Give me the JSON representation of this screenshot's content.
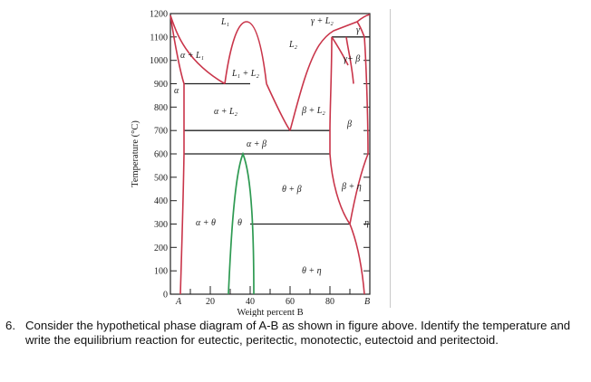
{
  "diagram": {
    "y_axis_title": "Temperature (°C)",
    "x_axis_title": "Weight percent B",
    "y_ticks": [
      "1200",
      "1100",
      "1000",
      "900",
      "800",
      "700",
      "600",
      "500",
      "400",
      "300",
      "200",
      "100",
      "0"
    ],
    "x_ticks": [
      "A",
      "20",
      "40",
      "60",
      "80",
      "B"
    ],
    "phase_labels": {
      "L1": "L₁",
      "L2_top": "L₂",
      "gamma_L2": "γ + L₂",
      "gamma_small": "γ",
      "alpha_L1": "α + L₁",
      "L1_L2": "L₁ + L₂",
      "gamma_beta": "γ+ β",
      "alpha": "α",
      "alpha_L2": "α + L₂",
      "beta_L2": "β + L₂",
      "beta": "β",
      "alpha_beta": "α + β",
      "theta_beta": "θ + β",
      "beta_eta": "β + η",
      "alpha_theta": "α + θ",
      "theta": "θ",
      "eta": "η",
      "theta_eta": "θ + η"
    },
    "colors": {
      "phase_boundary": "#c9354a",
      "theta_boundary": "#2e9a52",
      "isotherm": "#222222"
    }
  },
  "question": {
    "number": "6.",
    "text": "Consider the hypothetical phase diagram of A-B as shown in figure above. Identify the temperature and write the equilibrium reaction for eutectic, peritectic, monotectic, eutectoid and peritectoid."
  }
}
